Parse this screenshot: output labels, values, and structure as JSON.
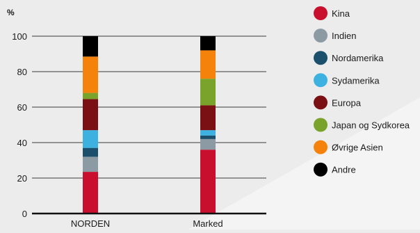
{
  "chart_data": {
    "type": "bar",
    "stacked": true,
    "ylabel": "%",
    "ylim": [
      0,
      100
    ],
    "yticks": [
      0,
      20,
      40,
      60,
      80,
      100
    ],
    "grid": true,
    "legend_position": "right",
    "categories": [
      "NORDEN",
      "Marked"
    ],
    "series": [
      {
        "name": "Kina",
        "color": "#c8102e",
        "values": [
          23.5,
          36
        ]
      },
      {
        "name": "Indien",
        "color": "#8c9aa4",
        "values": [
          8.5,
          6
        ]
      },
      {
        "name": "Nordamerika",
        "color": "#1b4f6b",
        "values": [
          5,
          2
        ]
      },
      {
        "name": "Sydamerika",
        "color": "#3db2e0",
        "values": [
          10,
          3
        ]
      },
      {
        "name": "Europa",
        "color": "#7a1014",
        "values": [
          17.5,
          14
        ]
      },
      {
        "name": "Japan og Sydkorea",
        "color": "#7aa32b",
        "values": [
          3.5,
          15
        ]
      },
      {
        "name": "Øvrige Asien",
        "color": "#f5820a",
        "values": [
          20.5,
          16
        ]
      },
      {
        "name": "Andre",
        "color": "#000000",
        "values": [
          11.5,
          8
        ]
      }
    ]
  }
}
